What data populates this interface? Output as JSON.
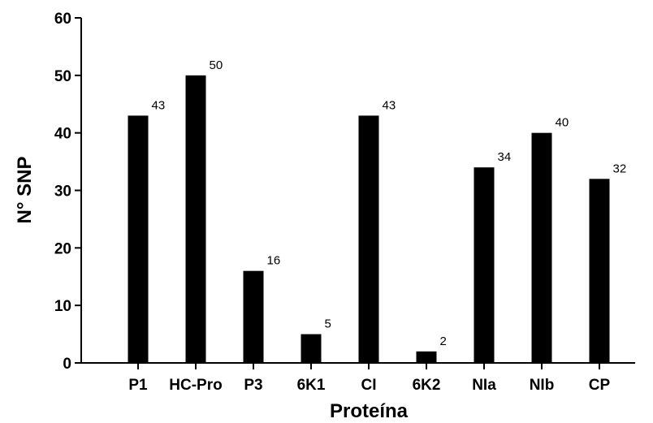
{
  "chart_data": {
    "type": "bar",
    "categories": [
      "P1",
      "HC-Pro",
      "P3",
      "6K1",
      "CI",
      "6K2",
      "NIa",
      "NIb",
      "CP"
    ],
    "values": [
      43,
      50,
      16,
      5,
      43,
      2,
      34,
      40,
      32
    ],
    "data_labels": [
      "43",
      "50",
      "16",
      "5",
      "43",
      "2",
      "34",
      "40",
      "32"
    ],
    "xlabel": "Proteína",
    "ylabel": "N° SNP",
    "ylim": [
      0,
      60
    ],
    "yticks": [
      0,
      10,
      20,
      30,
      40,
      50,
      60
    ],
    "grid": false,
    "legend": "none",
    "bar_color": "#000000"
  }
}
